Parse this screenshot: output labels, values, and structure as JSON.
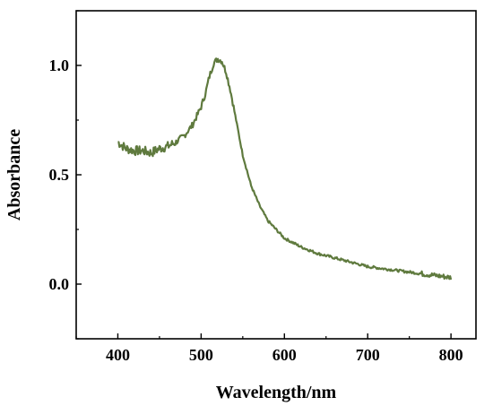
{
  "chart_data": {
    "type": "line",
    "title": "",
    "xlabel": "Wavelength/nm",
    "ylabel": "Absorbance",
    "xlim": [
      350,
      830
    ],
    "ylim": [
      -0.25,
      1.25
    ],
    "x_ticks": [
      400,
      500,
      600,
      700,
      800
    ],
    "x_tick_labels": [
      "400",
      "500",
      "600",
      "700",
      "800"
    ],
    "y_ticks": [
      0.0,
      0.5,
      1.0
    ],
    "y_tick_labels": [
      "0.0",
      "0.5",
      "1.0"
    ],
    "grid": false,
    "line_color": "#5f7a3e",
    "series": [
      {
        "x": [
          400,
          410,
          420,
          430,
          440,
          450,
          460,
          470,
          480,
          490,
          500,
          505,
          510,
          515,
          520,
          525,
          530,
          535,
          540,
          545,
          550,
          560,
          570,
          580,
          590,
          600,
          620,
          640,
          660,
          680,
          700,
          720,
          740,
          760,
          780,
          800
        ],
        "y": [
          0.65,
          0.62,
          0.61,
          0.61,
          0.6,
          0.62,
          0.63,
          0.65,
          0.68,
          0.73,
          0.81,
          0.87,
          0.95,
          1.01,
          1.03,
          1.02,
          0.97,
          0.89,
          0.79,
          0.69,
          0.59,
          0.45,
          0.36,
          0.29,
          0.25,
          0.21,
          0.17,
          0.14,
          0.12,
          0.1,
          0.08,
          0.07,
          0.06,
          0.05,
          0.04,
          0.03
        ]
      }
    ]
  }
}
